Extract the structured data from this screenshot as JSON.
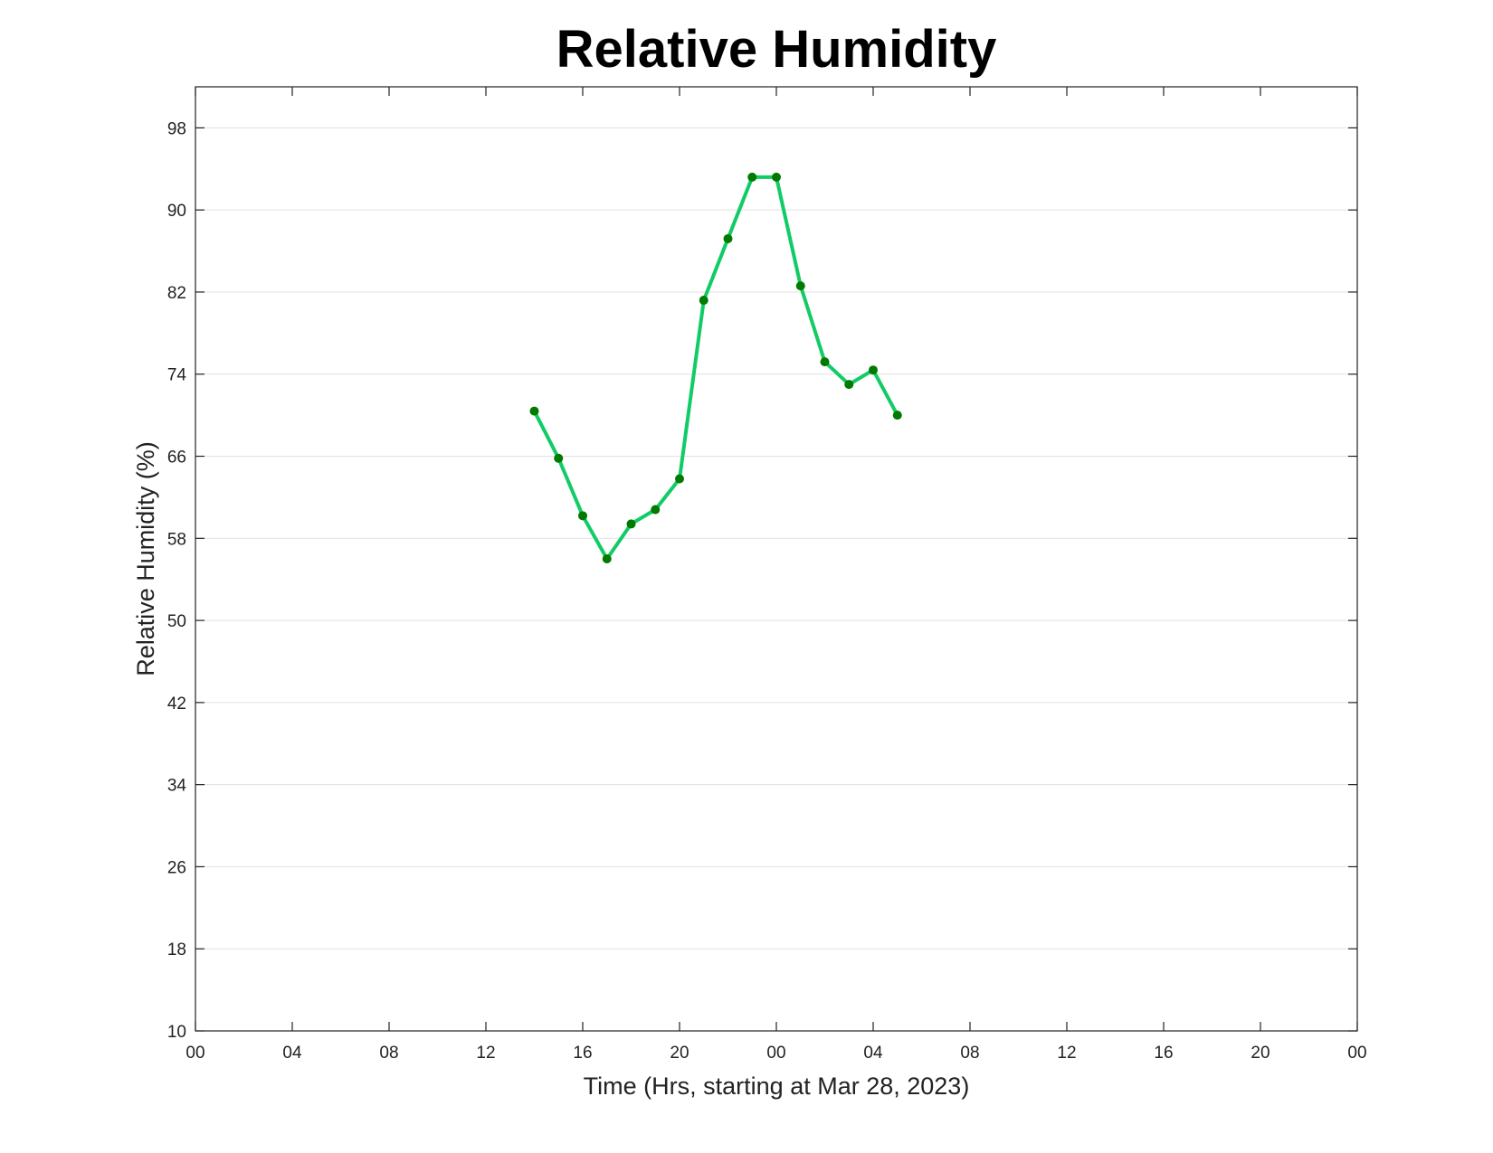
{
  "chart_data": {
    "type": "line",
    "title": "Relative Humidity",
    "xlabel": "Time (Hrs, starting at Mar 28, 2023)",
    "ylabel": "Relative Humidity (%)",
    "x_unit": "hours",
    "xlim": [
      0,
      48
    ],
    "ylim": [
      10,
      102
    ],
    "x_ticks": [
      0,
      4,
      8,
      12,
      16,
      20,
      24,
      28,
      32,
      36,
      40,
      44,
      48
    ],
    "x_tick_labels": [
      "00",
      "04",
      "08",
      "12",
      "16",
      "20",
      "00",
      "04",
      "08",
      "12",
      "16",
      "20",
      "00"
    ],
    "y_ticks": [
      10,
      18,
      26,
      34,
      42,
      50,
      58,
      66,
      74,
      82,
      90,
      98
    ],
    "y_tick_labels": [
      "10",
      "18",
      "26",
      "34",
      "42",
      "50",
      "58",
      "66",
      "74",
      "82",
      "90",
      "98"
    ],
    "grid": "horizontal",
    "line_color": "#11cc66",
    "marker_color": "#007a00",
    "series": [
      {
        "x": [
          14,
          15,
          16,
          17,
          18,
          19,
          20,
          21,
          22,
          23,
          24,
          25,
          26,
          27,
          28,
          29
        ],
        "values": [
          70.4,
          65.8,
          60.2,
          56.0,
          59.4,
          60.8,
          63.8,
          81.2,
          87.2,
          93.2,
          93.2,
          82.6,
          75.2,
          73.0,
          74.4,
          70.0
        ]
      }
    ]
  }
}
